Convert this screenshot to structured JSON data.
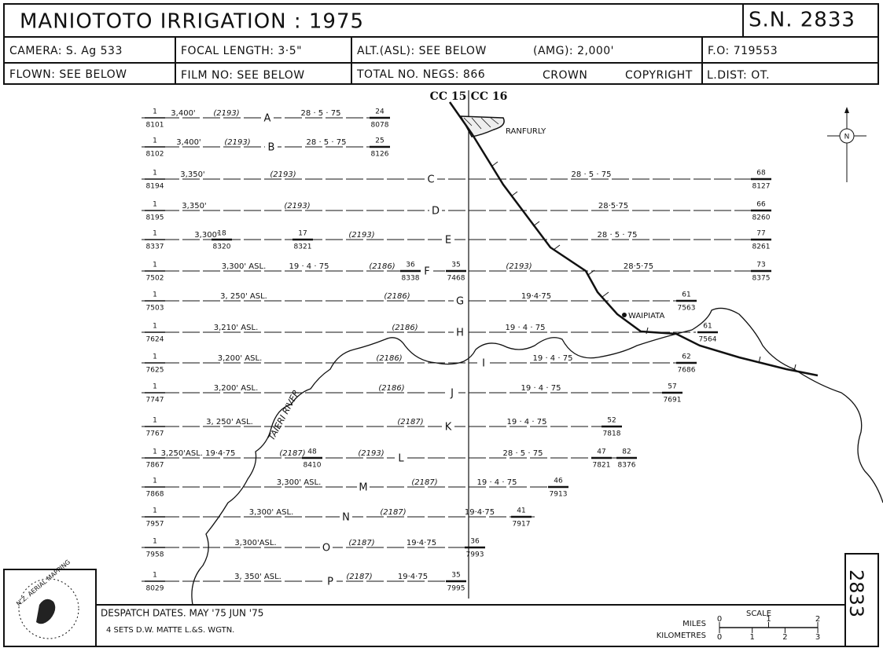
{
  "header": {
    "title": "MANIOTOTO  IRRIGATION : 1975",
    "sheet": "S.N. 2833",
    "row1": [
      "CAMERA: S. Ag  533",
      "FOCAL LENGTH: 3·5\"",
      "ALT.(ASL): SEE  BELOW",
      "(AMG): 2,000'",
      "F.O: 719553"
    ],
    "row2": [
      "FLOWN: SEE BELOW",
      "FILM NO: SEE BELOW",
      "TOTAL  NO.  NEGS: 866",
      "CROWN",
      "COPYRIGHT",
      "L.DIST: OT."
    ]
  },
  "map": {
    "cc_left": "CC 15",
    "cc_right": "CC 16",
    "towns": [
      "RANFURLY",
      "WAIPIATA"
    ],
    "river": "TAIERI  RIVER",
    "north": "N",
    "lines": [
      {
        "letter": "A",
        "start": {
          "top": "1",
          "bottom": "8101"
        },
        "items": [
          "3,400'",
          "(2193)",
          "28 · 5 · 75",
          {
            "top": "24",
            "bottom": "8078"
          }
        ]
      },
      {
        "letter": "B",
        "start": {
          "top": "1",
          "bottom": "8102"
        },
        "items": [
          "3,400'",
          "(2193)",
          "28 · 5 · 75",
          {
            "top": "25",
            "bottom": "8126"
          }
        ]
      },
      {
        "letter": "C",
        "start": {
          "top": "1",
          "bottom": "8194"
        },
        "items": [
          "3,350'",
          "(2193)",
          "28 · 5 · 75",
          {
            "top": "68",
            "bottom": "8127"
          }
        ]
      },
      {
        "letter": "D",
        "start": {
          "top": "1",
          "bottom": "8195"
        },
        "items": [
          "3,350'",
          "(2193)",
          "28·5·75",
          {
            "top": "66",
            "bottom": "8260"
          }
        ]
      },
      {
        "letter": "E",
        "start": {
          "top": "1",
          "bottom": "8337"
        },
        "items": [
          "3,300'",
          {
            "top": "18",
            "bottom": "8320"
          },
          {
            "top": "17",
            "bottom": "8321"
          },
          "(2193)",
          "28 · 5 · 75",
          {
            "top": "77",
            "bottom": "8261"
          }
        ]
      },
      {
        "letter": "F",
        "start": {
          "top": "1",
          "bottom": "7502"
        },
        "items": [
          "3,300'  ASL.",
          "19 · 4 · 75",
          "(2186)",
          {
            "top": "36",
            "bottom": "8338"
          },
          {
            "top": "35",
            "bottom": "7468"
          },
          "(2193)",
          "28·5·75",
          {
            "top": "73",
            "bottom": "8375"
          }
        ]
      },
      {
        "letter": "G",
        "start": {
          "top": "1",
          "bottom": "7503"
        },
        "items": [
          "3, 250'  ASL.",
          "(2186)",
          "19·4·75",
          {
            "top": "61",
            "bottom": "7563"
          }
        ]
      },
      {
        "letter": "H",
        "start": {
          "top": "1",
          "bottom": "7624"
        },
        "items": [
          "3,210'  ASL.",
          "(2186)",
          "19 · 4 · 75",
          {
            "top": "61",
            "bottom": "7564"
          }
        ]
      },
      {
        "letter": "I",
        "start": {
          "top": "1",
          "bottom": "7625"
        },
        "items": [
          "3,200' ASL.",
          "(2186)",
          "19 · 4 · 75",
          {
            "top": "62",
            "bottom": "7686"
          }
        ]
      },
      {
        "letter": "J",
        "start": {
          "top": "1",
          "bottom": "7747"
        },
        "items": [
          "3,200' ASL.",
          "(2186)",
          "19 · 4 · 75",
          {
            "top": "57",
            "bottom": "7691"
          }
        ]
      },
      {
        "letter": "K",
        "start": {
          "top": "1",
          "bottom": "7767"
        },
        "items": [
          "3, 250' ASL.",
          "(2187)",
          "19 · 4 · 75",
          {
            "top": "52",
            "bottom": "7818"
          }
        ]
      },
      {
        "letter": "L",
        "start": {
          "top": "1",
          "bottom": "7867"
        },
        "items": [
          "3,250'ASL. 19·4·75",
          "(2187)",
          {
            "top": "48",
            "bottom": "8410"
          },
          "(2193)",
          "28 · 5 · 75",
          {
            "top": "47",
            "bottom": "7821"
          },
          {
            "top": "82",
            "bottom": "8376"
          }
        ]
      },
      {
        "letter": "M",
        "start": {
          "top": "1",
          "bottom": "7868"
        },
        "items": [
          "3,300'  ASL.",
          "(2187)",
          "19 · 4 · 75",
          {
            "top": "46",
            "bottom": "7913"
          }
        ]
      },
      {
        "letter": "N",
        "start": {
          "top": "1",
          "bottom": "7957"
        },
        "items": [
          "3,300'  ASL.",
          "(2187)",
          "19·4·75",
          {
            "top": "41",
            "bottom": "7917"
          }
        ]
      },
      {
        "letter": "O",
        "start": {
          "top": "1",
          "bottom": "7958"
        },
        "items": [
          "3,300'ASL.",
          "(2187)",
          "19·4·75",
          {
            "top": "36",
            "bottom": "7993"
          }
        ]
      },
      {
        "letter": "P",
        "start": {
          "top": "1",
          "bottom": "8029"
        },
        "items": [
          "3, 350' ASL.",
          "(2187)",
          "19·4·75",
          {
            "top": "35",
            "bottom": "7995"
          }
        ]
      }
    ]
  },
  "footer": {
    "despatch": "DESPATCH  DATES. MAY '75  JUN '75",
    "sets": "4  SETS    D.W. MATTE    L.&S.  WGTN.",
    "logo": "N.Z. AERIAL MAPPING",
    "side": "2833"
  },
  "scale": {
    "title": "SCALE",
    "miles_label": "MILES",
    "km_label": "KILOMETRES",
    "miles_ticks": [
      "0",
      "1",
      "2"
    ],
    "km_ticks": [
      "0",
      "1",
      "2",
      "3"
    ]
  }
}
